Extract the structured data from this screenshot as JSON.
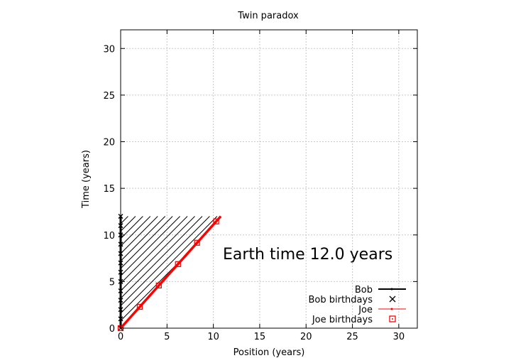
{
  "chart_data": {
    "type": "line",
    "title": "Twin paradox",
    "xlabel": "Position (years)",
    "ylabel": "Time (years)",
    "xlim": [
      0,
      32
    ],
    "ylim": [
      0,
      32
    ],
    "xticks": [
      0,
      5,
      10,
      15,
      20,
      25,
      30
    ],
    "yticks": [
      0,
      5,
      10,
      15,
      20,
      25,
      30
    ],
    "grid": true,
    "legend_position": "bottom-right",
    "annotation": "Earth time 12.0 years",
    "series": [
      {
        "name": "Bob",
        "style": "line",
        "color": "#000000",
        "x": [
          0,
          0
        ],
        "y": [
          0,
          12
        ]
      },
      {
        "name": "Bob birthdays",
        "style": "x-marker",
        "color": "#000000",
        "x": [
          0,
          0,
          0,
          0,
          0,
          0,
          0,
          0,
          0,
          0,
          0,
          0,
          0
        ],
        "y": [
          0,
          1,
          2,
          3,
          4,
          5,
          6,
          7,
          8,
          9,
          10,
          11,
          12
        ]
      },
      {
        "name": "Joe",
        "style": "line",
        "color": "#ff0000",
        "x": [
          0,
          10.8
        ],
        "y": [
          0,
          12
        ]
      },
      {
        "name": "Joe birthdays",
        "style": "square-marker",
        "color": "#ff0000",
        "x": [
          0,
          2.06,
          4.12,
          6.18,
          8.24,
          10.3
        ],
        "y": [
          0,
          2.29,
          4.58,
          6.87,
          9.16,
          11.45
        ]
      }
    ],
    "hatch": {
      "color": "#000000",
      "region": "between Bob and Joe worldlines up to t = 12"
    }
  }
}
